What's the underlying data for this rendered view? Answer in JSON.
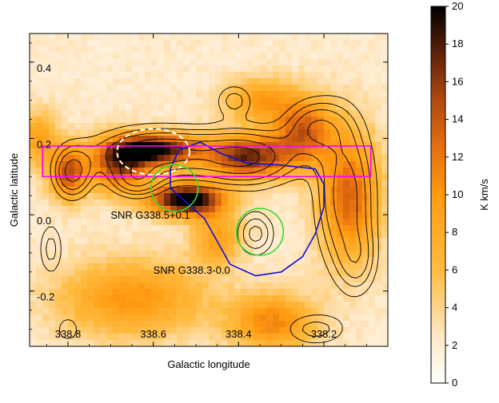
{
  "chart_data": {
    "type": "heatmap",
    "xlabel": "Galactic longitude",
    "ylabel": "Galactic latitude",
    "colorbar_label": "K km/s",
    "colormap": "white-orange-black",
    "colorbar": {
      "min": 0,
      "max": 20,
      "ticks": [
        0,
        2,
        4,
        6,
        8,
        10,
        12,
        14,
        16,
        18,
        20
      ]
    },
    "x_ticks": [
      338.8,
      338.6,
      338.4,
      338.2
    ],
    "x_tick_labels": [
      "338.8",
      "338.6",
      "338.4",
      "338.2"
    ],
    "y_ticks": [
      0.4,
      0.2,
      0.0,
      -0.2
    ],
    "y_tick_labels": [
      "0.4",
      "0.2",
      "0.0",
      "-0.2"
    ],
    "xlim": [
      338.89,
      338.05
    ],
    "ylim": [
      -0.345,
      0.475
    ],
    "annotations": [
      {
        "text": "SNR G338.5+0.1",
        "l": 338.7,
        "b": -0.01
      },
      {
        "text": "SNR G338.3-0.0",
        "l": 338.6,
        "b": -0.155
      }
    ],
    "emission_peaks": [
      {
        "l": 338.52,
        "b": 0.04,
        "value": 20,
        "sigma_l": 0.06,
        "sigma_b": 0.03
      },
      {
        "l": 338.59,
        "b": 0.17,
        "value": 17,
        "sigma_l": 0.07,
        "sigma_b": 0.03
      },
      {
        "l": 338.68,
        "b": 0.13,
        "value": 13,
        "sigma_l": 0.05,
        "sigma_b": 0.05
      },
      {
        "l": 338.38,
        "b": 0.15,
        "value": 15,
        "sigma_l": 0.07,
        "sigma_b": 0.04
      },
      {
        "l": 338.8,
        "b": 0.11,
        "value": 12,
        "sigma_l": 0.03,
        "sigma_b": 0.05
      },
      {
        "l": 338.14,
        "b": 0.05,
        "value": 11,
        "sigma_l": 0.05,
        "sigma_b": 0.12
      },
      {
        "l": 338.25,
        "b": 0.22,
        "value": 11,
        "sigma_l": 0.05,
        "sigma_b": 0.06
      },
      {
        "l": 338.65,
        "b": -0.22,
        "value": 8,
        "sigma_l": 0.12,
        "sigma_b": 0.07
      },
      {
        "l": 338.32,
        "b": -0.28,
        "value": 9,
        "sigma_l": 0.07,
        "sigma_b": 0.05
      },
      {
        "l": 338.45,
        "b": -0.06,
        "value": 7,
        "sigma_l": 0.04,
        "sigma_b": 0.05
      },
      {
        "l": 338.87,
        "b": 0.2,
        "value": 7,
        "sigma_l": 0.03,
        "sigma_b": 0.05
      },
      {
        "l": 338.35,
        "b": 0.3,
        "value": 7,
        "sigma_l": 0.06,
        "sigma_b": 0.04
      }
    ],
    "shapes": [
      {
        "name": "magenta-rectangle",
        "kind": "rect",
        "color": "#ff00ff",
        "l1": 338.86,
        "l2": 338.09,
        "b1": 0.18,
        "b2": 0.1
      },
      {
        "name": "white-dashed-ellipse",
        "kind": "ellipse",
        "color": "#ffffff",
        "dashed": true,
        "l": 338.6,
        "b": 0.165,
        "rl": 0.085,
        "rb": 0.06
      },
      {
        "name": "green-circle-snr-g338-5",
        "kind": "circle",
        "color": "#33dd33",
        "l": 338.55,
        "b": 0.07,
        "r_l": 0.055
      },
      {
        "name": "green-circle-snr-g338-3",
        "kind": "circle",
        "color": "#33dd33",
        "l": 338.35,
        "b": -0.045,
        "r_l": 0.055
      }
    ],
    "blue_contour_color": "#1010dd",
    "blue_contour": [
      [
        338.56,
        0.12
      ],
      [
        338.54,
        0.17
      ],
      [
        338.49,
        0.19
      ],
      [
        338.44,
        0.16
      ],
      [
        338.38,
        0.135
      ],
      [
        338.3,
        0.13
      ],
      [
        338.22,
        0.12
      ],
      [
        338.2,
        0.08
      ],
      [
        338.2,
        0.02
      ],
      [
        338.22,
        -0.05
      ],
      [
        338.25,
        -0.11
      ],
      [
        338.3,
        -0.15
      ],
      [
        338.36,
        -0.16
      ],
      [
        338.42,
        -0.13
      ],
      [
        338.45,
        -0.07
      ],
      [
        338.48,
        -0.01
      ],
      [
        338.52,
        0.03
      ],
      [
        338.56,
        0.07
      ]
    ],
    "contour_color": "#000000",
    "contour_levels": [
      3,
      5,
      7,
      10,
      13
    ],
    "contour_components": [
      {
        "l": 338.59,
        "b": 0.16,
        "value": 14,
        "sigma_l": 0.1,
        "sigma_b": 0.045
      },
      {
        "l": 338.38,
        "b": 0.15,
        "value": 13,
        "sigma_l": 0.08,
        "sigma_b": 0.05
      },
      {
        "l": 338.79,
        "b": 0.11,
        "value": 11,
        "sigma_l": 0.03,
        "sigma_b": 0.045
      },
      {
        "l": 338.64,
        "b": 0.09,
        "value": 9,
        "sigma_l": 0.04,
        "sigma_b": 0.03
      },
      {
        "l": 338.15,
        "b": 0.05,
        "value": 12,
        "sigma_l": 0.045,
        "sigma_b": 0.13
      },
      {
        "l": 338.22,
        "b": 0.23,
        "value": 9,
        "sigma_l": 0.05,
        "sigma_b": 0.05
      },
      {
        "l": 338.36,
        "b": -0.05,
        "value": 8,
        "sigma_l": 0.03,
        "sigma_b": 0.04
      },
      {
        "l": 338.84,
        "b": -0.09,
        "value": 6,
        "sigma_l": 0.02,
        "sigma_b": 0.05
      },
      {
        "l": 338.41,
        "b": 0.3,
        "value": 6,
        "sigma_l": 0.03,
        "sigma_b": 0.03
      },
      {
        "l": 338.22,
        "b": -0.3,
        "value": 6,
        "sigma_l": 0.05,
        "sigma_b": 0.03
      },
      {
        "l": 338.8,
        "b": -0.3,
        "value": 5,
        "sigma_l": 0.02,
        "sigma_b": 0.025
      },
      {
        "l": 338.12,
        "b": -0.12,
        "value": 6,
        "sigma_l": 0.03,
        "sigma_b": 0.06
      }
    ]
  }
}
